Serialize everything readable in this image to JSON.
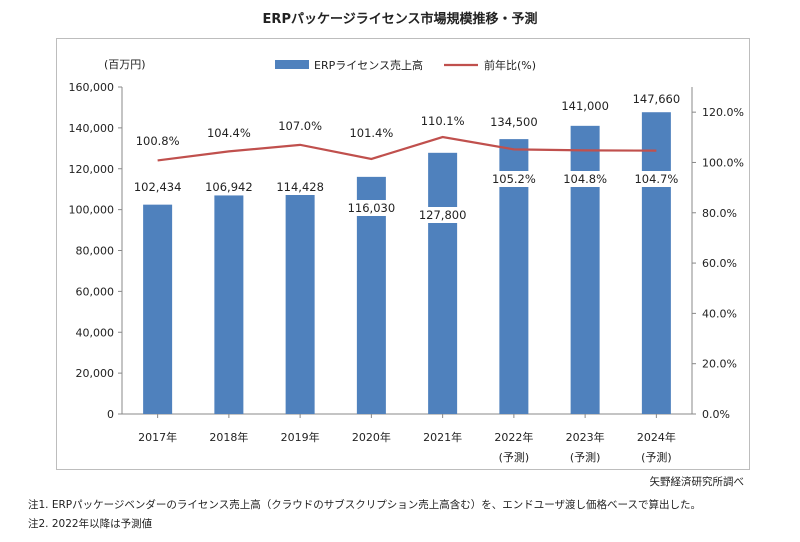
{
  "title": "ERPパッケージライセンス市場規模推移・予測",
  "source": "矢野経済研究所調べ",
  "notes": [
    "注1.  ERPパッケージベンダーのライセンス売上高（クラウドのサブスクリプション売上高含む）を、エンドユーザ渡し価格ベースで算出した。",
    "注2.  2022年以降は予測値"
  ],
  "colors": {
    "bar": "#4f81bd",
    "line": "#c0504d"
  },
  "chart_data": {
    "type": "bar",
    "categories": [
      "2017年",
      "2018年",
      "2019年",
      "2020年",
      "2021年",
      "2022年",
      "2023年",
      "2024年"
    ],
    "category_sublabels": [
      "",
      "",
      "",
      "",
      "",
      "(予測)",
      "(予測)",
      "(予測)"
    ],
    "series": [
      {
        "name": "ERPライセンス売上高",
        "type": "bar",
        "axis": "left",
        "values": [
          102434,
          106942,
          114428,
          116030,
          127800,
          134500,
          141000,
          147660
        ],
        "labels": [
          "102,434",
          "106,942",
          "114,428",
          "116,030",
          "127,800",
          "134,500",
          "141,000",
          "147,660"
        ]
      },
      {
        "name": "前年比(%)",
        "type": "line",
        "axis": "right",
        "values": [
          100.8,
          104.4,
          107.0,
          101.4,
          110.1,
          105.2,
          104.8,
          104.7
        ],
        "labels": [
          "100.8%",
          "104.4%",
          "107.0%",
          "101.4%",
          "110.1%",
          "105.2%",
          "104.8%",
          "104.7%"
        ]
      }
    ],
    "left_axis": {
      "label": "(百万円)",
      "ylim": [
        0,
        160000
      ],
      "ticks": [
        "0",
        "20,000",
        "40,000",
        "60,000",
        "80,000",
        "100,000",
        "120,000",
        "140,000",
        "160,000"
      ]
    },
    "right_axis": {
      "ylim": [
        0,
        130
      ],
      "ticks": [
        "0.0%",
        "20.0%",
        "40.0%",
        "60.0%",
        "80.0%",
        "100.0%",
        "120.0%"
      ]
    },
    "legend": "top",
    "grid": false
  }
}
